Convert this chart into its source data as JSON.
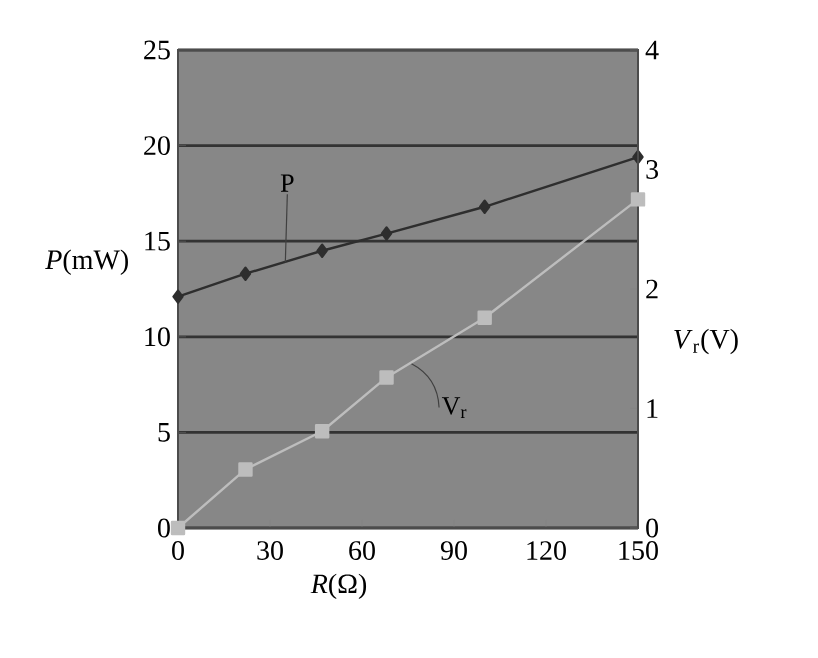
{
  "chart_data": {
    "type": "line",
    "xlabel": "*R*(Ω)",
    "ylabel": "*P*(mW)",
    "y2label": "*V*$_{r}$(V)",
    "x": [
      0,
      22,
      47,
      68,
      100,
      150
    ],
    "series": [
      {
        "color": "#2e2e2e",
        "marker": "diamond",
        "values": [
          12.1,
          13.3,
          14.5,
          15.4,
          16.8,
          19.4
        ]
      },
      {
        "color": "#bdbdbd",
        "marker": "square",
        "axis": "y2",
        "values": [
          0,
          0.49,
          0.81,
          1.26,
          1.76,
          2.75
        ]
      }
    ],
    "annotations": [
      {
        "text": "P",
        "x": 35,
        "y": 13.9
      },
      {
        "text": "V$_{r}$",
        "x": 76,
        "y": 8.6
      }
    ],
    "xlim": [
      0,
      150
    ],
    "xticks": [
      0,
      30,
      60,
      90,
      120,
      150
    ],
    "ylim": [
      0,
      25
    ],
    "yticks": [
      0,
      5,
      10,
      15,
      20,
      25
    ],
    "y2lim": [
      0,
      4
    ],
    "y2ticks": [
      0,
      1,
      2,
      3,
      4
    ],
    "grid": "y",
    "line_style": "solid"
  }
}
